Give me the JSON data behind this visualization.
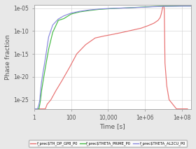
{
  "title": "",
  "xlabel": "Time [s]",
  "ylabel": "Phase fraction",
  "xlim": [
    1,
    300000000.0
  ],
  "ylim": [
    1e-27,
    5e-05
  ],
  "bg_color": "#e8e8e8",
  "plot_bg_color": "#ffffff",
  "grid_color": "#d0d0d0",
  "lines": [
    {
      "label": "f_prec$TH_DP_GP8_P0",
      "color": "#e87070",
      "x": [
        1.0,
        1.5,
        2.0,
        2.5,
        3.0,
        4.0,
        5.0,
        8.0,
        15,
        30,
        80,
        200,
        600,
        2000,
        6000,
        20000,
        60000,
        200000,
        600000,
        1500000,
        3000000,
        5000000,
        6500000,
        7500000,
        8500000,
        9000000,
        9500000,
        10000000.0,
        10500000.0,
        11000000.0,
        12000000.0,
        15000000.0,
        20000000.0,
        50000000.0,
        100000000.0,
        200000000.0
      ],
      "y": [
        1e-27,
        1e-27,
        1e-27,
        1e-27,
        1e-27,
        1e-27,
        1e-26,
        1e-25,
        1e-23,
        1e-21,
        1e-18,
        1e-15,
        1e-13,
        3e-12,
        8e-12,
        2e-11,
        5e-11,
        1.5e-10,
        4e-10,
        1.5e-09,
        5e-09,
        2e-08,
        8e-08,
        5e-07,
        5e-06,
        1.5e-05,
        2.2e-05,
        2.5e-05,
        2.2e-05,
        5e-06,
        1e-17,
        1e-22,
        1e-25,
        1e-27,
        1e-27,
        1e-27
      ]
    },
    {
      "label": "f_prec$THETA_PRIME_P0",
      "color": "#44bb44",
      "x": [
        1.0,
        1.5,
        1.8,
        2.0,
        2.2,
        2.5,
        3.0,
        4.0,
        6.0,
        10,
        20,
        40,
        100,
        300,
        1000,
        3000,
        10000,
        30000,
        100000,
        300000,
        1000000,
        3000000,
        10000000.0,
        50000000.0,
        100000000.0,
        200000000.0,
        300000000.0
      ],
      "y": [
        1e-27,
        1e-27,
        1e-27,
        1e-26,
        1e-25,
        1e-23,
        1e-21,
        1e-18,
        1e-14,
        5e-11,
        2e-08,
        5e-08,
        5e-07,
        1.5e-06,
        3e-06,
        5e-06,
        7e-06,
        9e-06,
        1.1e-05,
        1.4e-05,
        1.8e-05,
        2.2e-05,
        2.6e-05,
        2.8e-05,
        2.9e-05,
        2.9e-05,
        2.9e-05
      ]
    },
    {
      "label": "f_prec$THETA_AL2CU_P0",
      "color": "#8888dd",
      "x": [
        1.0,
        1.5,
        1.8,
        2.0,
        2.2,
        2.5,
        3.0,
        4.0,
        6.0,
        10,
        20,
        40,
        100,
        300,
        1000,
        3000,
        10000,
        30000,
        100000,
        300000,
        1000000,
        3000000,
        10000000.0,
        50000000.0,
        100000000.0,
        200000000.0,
        300000000.0
      ],
      "y": [
        1e-27,
        1e-27,
        1e-26,
        1e-25,
        1e-23,
        1e-21,
        1e-19,
        1e-16,
        5e-12,
        2e-09,
        4e-08,
        2e-07,
        8e-07,
        2e-06,
        4e-06,
        6e-06,
        8e-06,
        9.5e-06,
        1.1e-05,
        1.3e-05,
        1.6e-05,
        2e-05,
        2.3e-05,
        2.5e-05,
        2.6e-05,
        2.6e-05,
        2.6e-05
      ]
    }
  ],
  "xticks": [
    1,
    100,
    10000,
    1000000,
    100000000.0
  ],
  "xticklabels": [
    "1",
    "100",
    "10,000",
    "1e+06",
    "1e+08"
  ],
  "yticks": [
    1e-25,
    1e-20,
    1e-15,
    1e-10,
    1e-05
  ],
  "yticklabels": [
    "1e-25",
    "1e-20",
    "1e-15",
    "1e-10",
    "1e-05"
  ],
  "legend_labels": [
    "f_prec$TH_DP_GP8_P0",
    "f_prec$THETA_PRIME_P0",
    "f_prec$THETA_AL2CU_P0"
  ],
  "legend_colors": [
    "#e87070",
    "#44bb44",
    "#8888dd"
  ]
}
